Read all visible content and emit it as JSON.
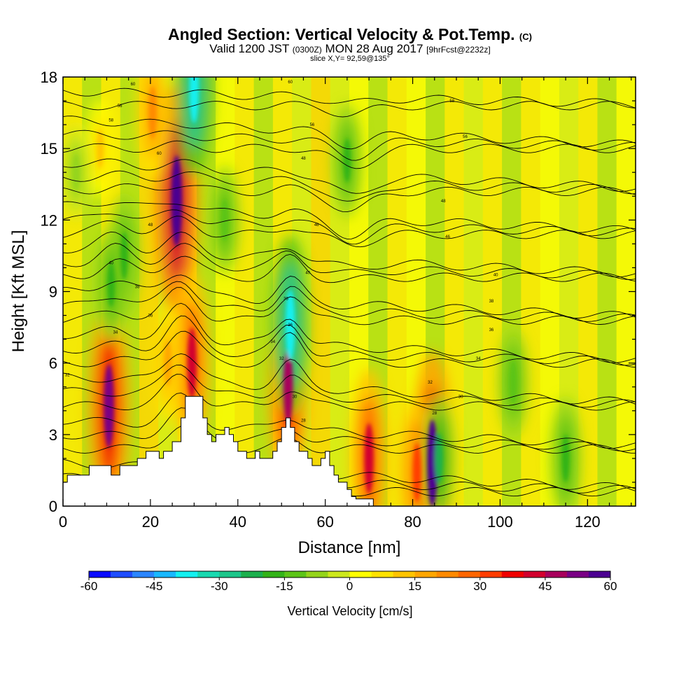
{
  "title": {
    "main": "Angled Section: Vertical Velocity & Pot.Temp.",
    "main_tag": "(C)",
    "valid_a": "Valid 1200 JST",
    "valid_b": "(0300Z)",
    "valid_c": "MON 28 Aug 2017",
    "valid_d": "[9hrFcst@2232z]",
    "slice": "slice X,Y= 92,59@135°"
  },
  "chart_data": {
    "type": "heatmap",
    "xlabel": "Distance [nm]",
    "ylabel": "Height [Kft MSL]",
    "xlim": [
      0,
      131
    ],
    "ylim": [
      0,
      18
    ],
    "x_ticks": [
      0,
      20,
      40,
      60,
      80,
      100,
      120
    ],
    "y_ticks": [
      0,
      3,
      6,
      9,
      12,
      15,
      18
    ],
    "colorbar": {
      "label": "Vertical Velocity [cm/s]",
      "ticks": [
        -60,
        -45,
        -30,
        -15,
        0,
        15,
        30,
        45,
        60
      ],
      "colors": [
        "#0a0aff",
        "#1f4dff",
        "#2b86ff",
        "#19b8ff",
        "#14f0f0",
        "#18d9b0",
        "#1cc68a",
        "#1cb04d",
        "#33b318",
        "#5cc417",
        "#94d41a",
        "#cde81c",
        "#ffff00",
        "#ffe200",
        "#ffc400",
        "#ffa600",
        "#ff8a00",
        "#ff6600",
        "#ff3c00",
        "#f00000",
        "#d2002e",
        "#a8005c",
        "#7a0085",
        "#4b0091"
      ]
    },
    "terrain_profile": {
      "x": [
        0,
        1,
        1,
        6,
        6,
        11,
        11,
        13,
        13,
        17,
        17,
        19,
        19,
        22,
        22,
        23,
        23,
        25,
        25,
        27,
        27,
        28,
        28,
        32,
        32,
        33,
        33,
        34,
        34,
        35,
        35,
        37,
        37,
        38,
        38,
        39,
        39,
        40,
        40,
        42,
        42,
        44,
        44,
        45,
        45,
        48,
        48,
        49,
        49,
        50,
        50,
        51,
        51,
        52,
        52,
        53,
        53,
        54,
        54,
        56,
        56,
        57,
        57,
        59,
        59,
        60,
        60,
        61,
        61,
        62,
        62,
        63,
        63,
        65,
        65,
        66,
        66,
        67,
        67,
        68,
        68,
        71
      ],
      "y": [
        1.0,
        1.0,
        1.3,
        1.3,
        1.7,
        1.7,
        1.3,
        1.3,
        1.7,
        1.7,
        2.0,
        2.0,
        2.3,
        2.3,
        2.0,
        2.0,
        2.3,
        2.3,
        2.7,
        2.7,
        3.7,
        3.7,
        4.6,
        4.6,
        3.7,
        3.7,
        3.0,
        3.0,
        2.7,
        2.7,
        3.0,
        3.0,
        3.3,
        3.3,
        3.0,
        3.0,
        2.7,
        2.7,
        2.3,
        2.3,
        2.0,
        2.0,
        2.3,
        2.3,
        2.0,
        2.0,
        2.3,
        2.3,
        2.7,
        2.7,
        3.3,
        3.3,
        3.7,
        3.7,
        3.3,
        3.3,
        2.7,
        2.7,
        2.3,
        2.3,
        2.0,
        2.0,
        1.7,
        1.7,
        2.0,
        2.0,
        2.3,
        2.3,
        1.7,
        1.7,
        1.3,
        1.3,
        1.0,
        1.0,
        0.7,
        0.7,
        0.4,
        0.4,
        0.3,
        0.3,
        0.3,
        0.3
      ]
    },
    "updrafts": [
      {
        "x": 10.5,
        "y": 4.2,
        "w": 52
      },
      {
        "x": 26.0,
        "y": 12.8,
        "w": 58
      },
      {
        "x": 29.5,
        "y": 6.0,
        "w": 40
      },
      {
        "x": 51.5,
        "y": 5.0,
        "w": 45
      },
      {
        "x": 84.5,
        "y": 1.8,
        "w": 55
      },
      {
        "x": 70.0,
        "y": 2.0,
        "w": 40
      },
      {
        "x": 81.0,
        "y": 1.4,
        "w": 30
      },
      {
        "x": 20.5,
        "y": 16.5,
        "w": 24
      },
      {
        "x": 24.0,
        "y": 6.0,
        "w": 18
      },
      {
        "x": 8.5,
        "y": 15.0,
        "w": 12
      }
    ],
    "downdrafts": [
      {
        "x": 30.0,
        "y": 17.5,
        "w": -38
      },
      {
        "x": 52.0,
        "y": 7.6,
        "w": -40
      },
      {
        "x": 14.0,
        "y": 10.5,
        "w": -20
      },
      {
        "x": 11.0,
        "y": 9.3,
        "w": -18
      },
      {
        "x": 37.0,
        "y": 12.0,
        "w": -15
      },
      {
        "x": 65.0,
        "y": 14.5,
        "w": -17
      },
      {
        "x": 86.0,
        "y": 2.0,
        "w": -22
      },
      {
        "x": 103.0,
        "y": 5.2,
        "w": -15
      },
      {
        "x": 115.0,
        "y": 2.0,
        "w": -20
      },
      {
        "x": 3.0,
        "y": 14.0,
        "w": -10
      }
    ],
    "theta_contours": {
      "spacing_kft": 0.6,
      "count": 29,
      "labels": [
        {
          "x": 16,
          "y": 17.7,
          "text": "60"
        },
        {
          "x": 13,
          "y": 16.8,
          "text": "56"
        },
        {
          "x": 11,
          "y": 16.2,
          "text": "58"
        },
        {
          "x": 22,
          "y": 14.8,
          "text": "60"
        },
        {
          "x": 20,
          "y": 11.8,
          "text": "48"
        },
        {
          "x": 11,
          "y": 10.2,
          "text": "40"
        },
        {
          "x": 17,
          "y": 9.2,
          "text": "38"
        },
        {
          "x": 20,
          "y": 8.0,
          "text": "36"
        },
        {
          "x": 12,
          "y": 7.3,
          "text": "34"
        },
        {
          "x": 1,
          "y": 5.5,
          "text": "32"
        },
        {
          "x": 52,
          "y": 17.8,
          "text": "60"
        },
        {
          "x": 57,
          "y": 16.0,
          "text": "56"
        },
        {
          "x": 55,
          "y": 14.6,
          "text": "48"
        },
        {
          "x": 58,
          "y": 11.8,
          "text": "46"
        },
        {
          "x": 56,
          "y": 9.8,
          "text": "40"
        },
        {
          "x": 51,
          "y": 8.7,
          "text": "38"
        },
        {
          "x": 52,
          "y": 7.6,
          "text": "36"
        },
        {
          "x": 48,
          "y": 6.9,
          "text": "34"
        },
        {
          "x": 50,
          "y": 6.2,
          "text": "32"
        },
        {
          "x": 53,
          "y": 4.6,
          "text": "30"
        },
        {
          "x": 55,
          "y": 3.6,
          "text": "28"
        },
        {
          "x": 89,
          "y": 17.0,
          "text": "58"
        },
        {
          "x": 92,
          "y": 15.5,
          "text": "56"
        },
        {
          "x": 87,
          "y": 12.8,
          "text": "48"
        },
        {
          "x": 88,
          "y": 11.3,
          "text": "46"
        },
        {
          "x": 99,
          "y": 9.7,
          "text": "40"
        },
        {
          "x": 98,
          "y": 8.6,
          "text": "38"
        },
        {
          "x": 98,
          "y": 7.4,
          "text": "36"
        },
        {
          "x": 95,
          "y": 6.2,
          "text": "34"
        },
        {
          "x": 84,
          "y": 5.2,
          "text": "32"
        },
        {
          "x": 91,
          "y": 4.6,
          "text": "30"
        },
        {
          "x": 85,
          "y": 3.9,
          "text": "28"
        }
      ]
    }
  }
}
